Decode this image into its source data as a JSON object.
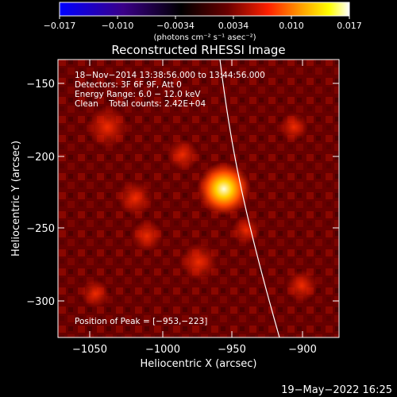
{
  "colorbar": {
    "ticks": [
      "−0.017",
      "−0.010",
      "−0.0034",
      "0.0034",
      "0.010",
      "0.017"
    ],
    "units": "(photons cm⁻² s⁻¹ asec⁻²)",
    "colors": [
      "#0000ff",
      "#3a0088",
      "#000000",
      "#6a0000",
      "#ff2000",
      "#ffa500",
      "#ffff00",
      "#ffffff"
    ]
  },
  "plot": {
    "title": "Reconstructed RHESSI Image",
    "xlabel": "Heliocentric X (arcsec)",
    "ylabel": "Heliocentric Y (arcsec)",
    "xticks": [
      "−1050",
      "−1000",
      "−950",
      "−900"
    ],
    "yticks": [
      "−150",
      "−200",
      "−250",
      "−300"
    ],
    "info": [
      "18−Nov−2014 13:38:56.000 to 13:44:56.000",
      "Detectors: 3F 6F 9F, Att 0",
      "Energy Range: 6.0 − 12.0 keV",
      "Clean    Total counts: 2.42E+04"
    ],
    "peak": "Position of Peak = [−953,−223]"
  },
  "footer": {
    "date": "19−May−2022 16:25"
  }
}
